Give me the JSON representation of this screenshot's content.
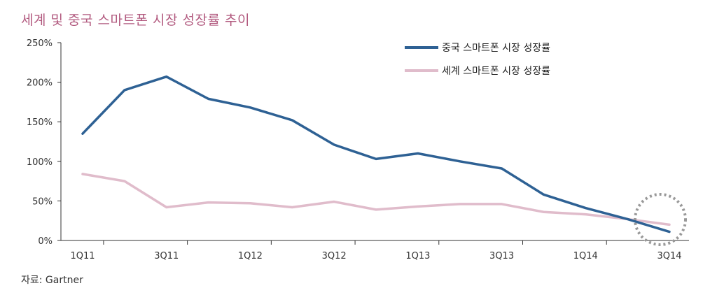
{
  "chart_data": {
    "type": "line",
    "title": "세계 및 중국 스마트폰 시장 성장률 추이",
    "source": "자료: Gartner",
    "x_tick_labels": [
      "1Q11",
      "3Q11",
      "1Q12",
      "3Q12",
      "1Q13",
      "3Q13",
      "1Q14",
      "3Q14"
    ],
    "ylim": [
      0,
      250
    ],
    "y_ticks": [
      "0%",
      "50%",
      "100%",
      "150%",
      "200%",
      "250%"
    ],
    "grid": false,
    "legend_placement": "top-right",
    "series": [
      {
        "name": "중국 스마트폰 시장 성장률",
        "color": "#2e6194",
        "values": [
          135,
          190,
          207,
          179,
          168,
          152,
          121,
          103,
          110,
          100,
          91,
          58,
          41,
          27,
          11
        ]
      },
      {
        "name": "세계 스마트폰 시장 성장률",
        "color": "#e0bccb",
        "values": [
          84,
          75,
          42,
          48,
          47,
          42,
          49,
          39,
          43,
          46,
          46,
          36,
          33,
          27,
          20
        ]
      }
    ],
    "annotation": "dotted circle highlighting crossover at 3Q14"
  }
}
